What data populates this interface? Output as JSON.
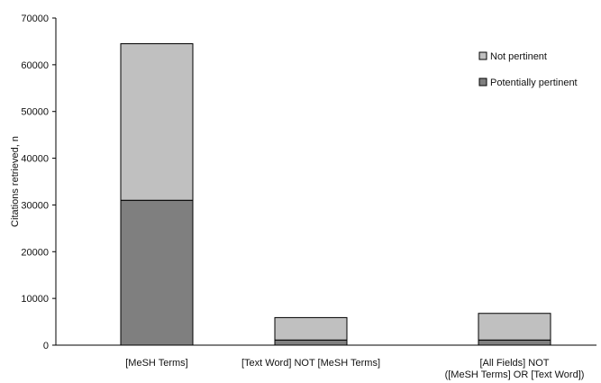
{
  "chart_data": {
    "type": "bar",
    "stacked": true,
    "categories": [
      [
        "[MeSH Terms]"
      ],
      [
        "[Text Word] NOT [MeSH Terms]"
      ],
      [
        "[All Fields] NOT",
        "([MeSH Terms] OR [Text Word])"
      ]
    ],
    "series": [
      {
        "name": "Potentially pertinent",
        "values": [
          31000,
          1100,
          1100
        ],
        "color": "#7f7f7f"
      },
      {
        "name": "Not pertinent",
        "values": [
          33500,
          4800,
          5700
        ],
        "color": "#c0c0c0"
      }
    ],
    "ylabel": "Citations retrieved, n",
    "xlabel": "",
    "ylim": [
      0,
      70000
    ],
    "yticks": [
      "0",
      "10000",
      "20000",
      "30000",
      "40000",
      "50000",
      "60000",
      "70000"
    ],
    "grid": false,
    "legend": {
      "position": "top-right",
      "entries": [
        "Not pertinent",
        "Potentially pertinent"
      ]
    }
  }
}
